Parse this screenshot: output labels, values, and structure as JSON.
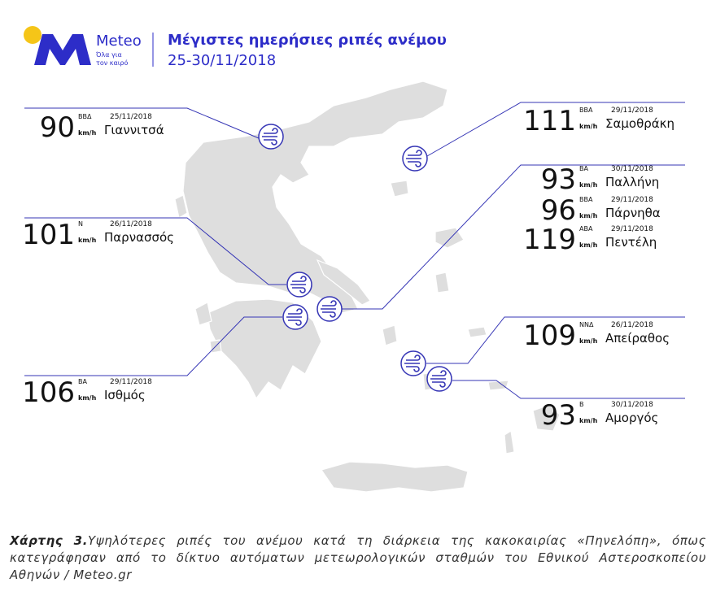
{
  "header": {
    "brand": "Meteo",
    "tagline_1": "Όλα για",
    "tagline_2": "τον καιρό",
    "title": "Μέγιστες ημερήσιες ριπές ανέμου",
    "dates": "25-30/11/2018"
  },
  "callouts": [
    {
      "readings": [
        {
          "value": "90",
          "direction": "ΒΒΔ",
          "date": "25/11/2018",
          "unit": "km/h",
          "name": "Γιαννιτσά"
        }
      ]
    },
    {
      "readings": [
        {
          "value": "111",
          "direction": "ΒΒΑ",
          "date": "29/11/2018",
          "unit": "km/h",
          "name": "Σαμοθράκη"
        }
      ]
    },
    {
      "readings": [
        {
          "value": "93",
          "direction": "ΒΑ",
          "date": "30/11/2018",
          "unit": "km/h",
          "name": "Παλλήνη"
        },
        {
          "value": "96",
          "direction": "ΒΒΑ",
          "date": "29/11/2018",
          "unit": "km/h",
          "name": "Πάρνηθα"
        },
        {
          "value": "119",
          "direction": "ΑΒΑ",
          "date": "29/11/2018",
          "unit": "km/h",
          "name": "Πεντέλη"
        }
      ]
    },
    {
      "readings": [
        {
          "value": "101",
          "direction": "Ν",
          "date": "26/11/2018",
          "unit": "km/h",
          "name": "Παρνασσός"
        }
      ]
    },
    {
      "readings": [
        {
          "value": "106",
          "direction": "ΒΑ",
          "date": "29/11/2018",
          "unit": "km/h",
          "name": "Ισθμός"
        }
      ]
    },
    {
      "readings": [
        {
          "value": "109",
          "direction": "ΝΝΔ",
          "date": "26/11/2018",
          "unit": "km/h",
          "name": "Απείραθος"
        }
      ]
    },
    {
      "readings": [
        {
          "value": "93",
          "direction": "Β",
          "date": "30/11/2018",
          "unit": "km/h",
          "name": "Αμοργός"
        }
      ]
    }
  ],
  "caption": {
    "label": "Χάρτης 3.",
    "text": "Υψηλότερες ριπές του ανέμου κατά τη διάρκεια της κακοκαιρίας «Πηνελόπη», όπως κατεγράφησαν από το δίκτυο αυτόματων μετεωρολογικών σταθμών του Εθνικού Αστεροσκοπείου Αθηνών / Meteo.gr"
  }
}
